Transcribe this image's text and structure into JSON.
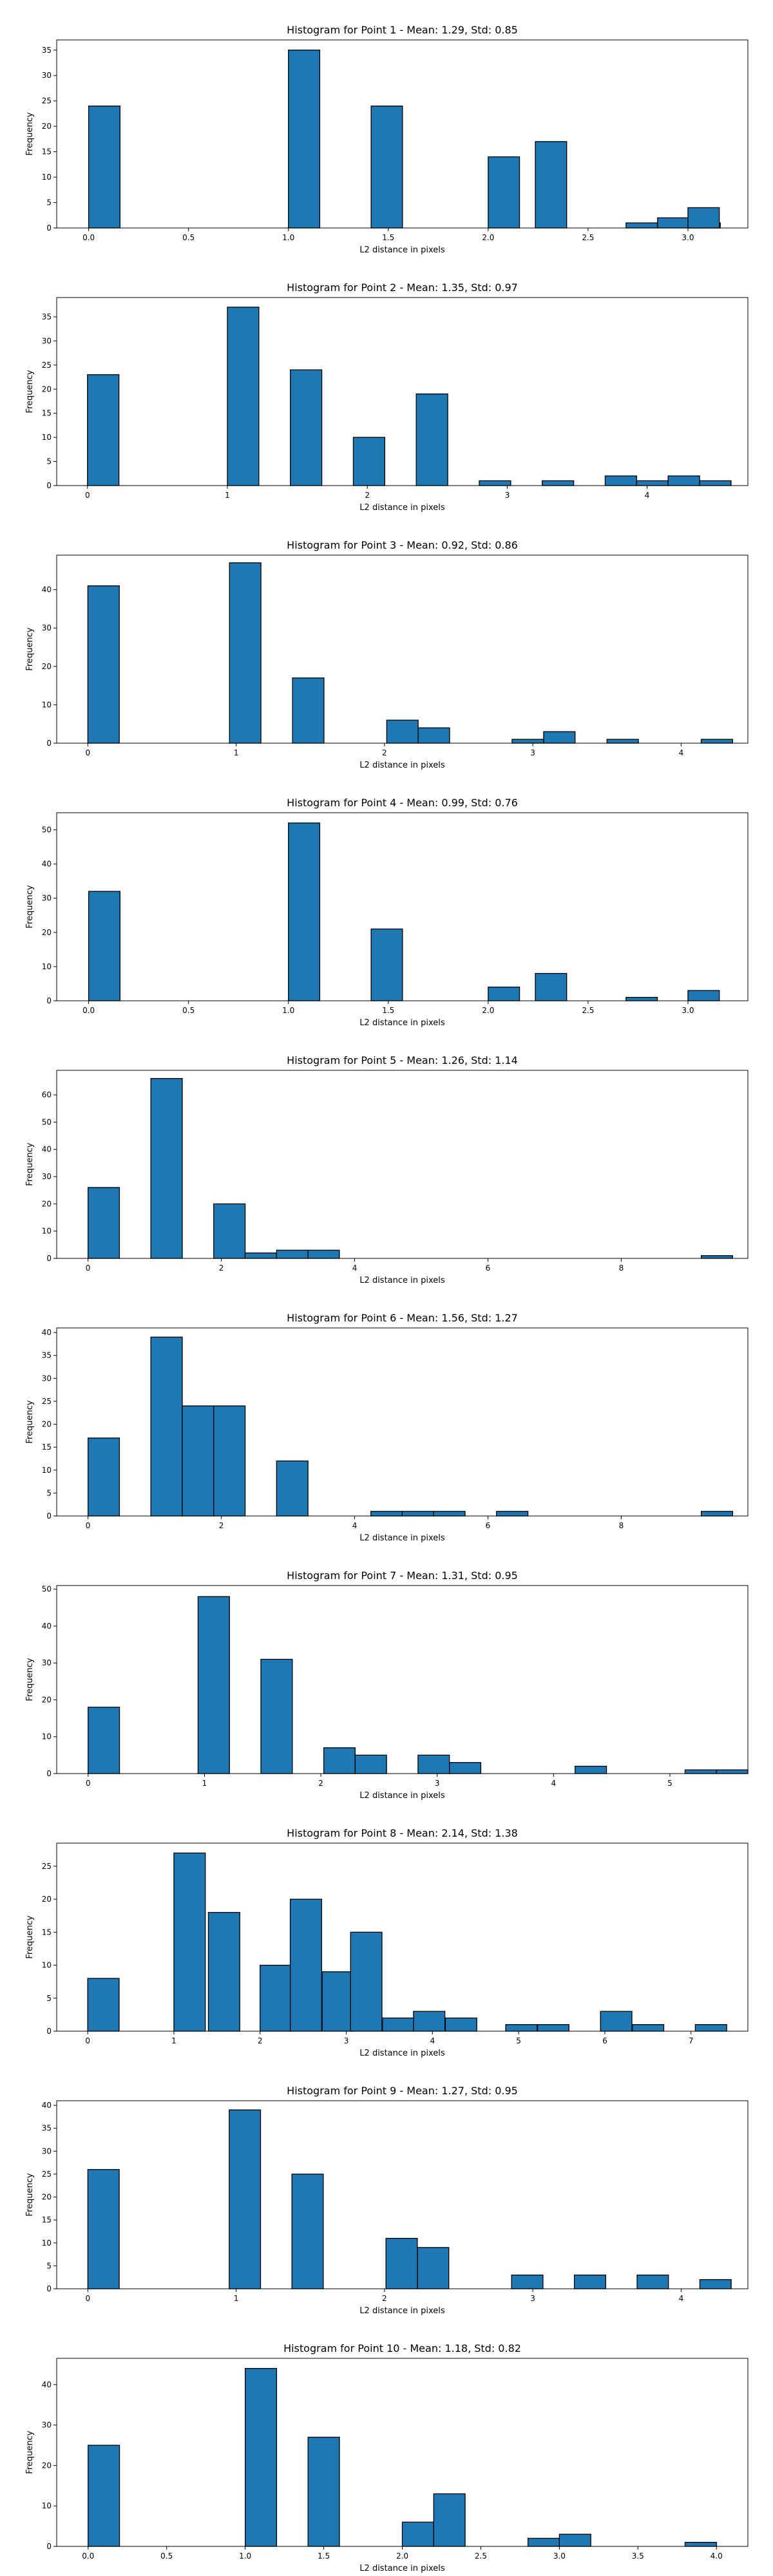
{
  "chart_data": [
    {
      "type": "bar",
      "title": "Histogram for Point 1 - Mean: 1.29, Std: 0.85",
      "xlabel": "L2 distance in pixels",
      "ylabel": "Frequency",
      "grid": false,
      "bin_width": 0.157,
      "xlim": [
        -0.16,
        3.3
      ],
      "ylim": [
        0,
        37
      ],
      "xticks": [
        0,
        0.5,
        1,
        1.5,
        2,
        2.5,
        3
      ],
      "xtick_labels": [
        "0.0",
        "0.5",
        "1.0",
        "1.5",
        "2.0",
        "2.5",
        "3.0"
      ],
      "yticks": [
        0,
        5,
        10,
        15,
        20,
        25,
        30,
        35
      ],
      "bars": [
        {
          "x": 0.0,
          "value": 24
        },
        {
          "x": 1.0,
          "value": 35
        },
        {
          "x": 1.414,
          "value": 24
        },
        {
          "x": 2.0,
          "value": 14
        },
        {
          "x": 2.236,
          "value": 17
        },
        {
          "x": 2.69,
          "value": 1
        },
        {
          "x": 2.848,
          "value": 2
        },
        {
          "x": 3.005,
          "value": 1
        },
        {
          "x": 3.0,
          "value": 4
        }
      ]
    },
    {
      "type": "bar",
      "title": "Histogram for Point 2 - Mean: 1.35, Std: 0.97",
      "xlabel": "L2 distance in pixels",
      "ylabel": "Frequency",
      "grid": false,
      "bin_width": 0.225,
      "xlim": [
        -0.22,
        4.72
      ],
      "ylim": [
        0,
        39
      ],
      "xticks": [
        0,
        1,
        2,
        3,
        4
      ],
      "xtick_labels": [
        "0",
        "1",
        "2",
        "3",
        "4"
      ],
      "yticks": [
        0,
        5,
        10,
        15,
        20,
        25,
        30,
        35
      ],
      "bars": [
        {
          "x": 0.0,
          "value": 23
        },
        {
          "x": 1.0,
          "value": 37
        },
        {
          "x": 1.45,
          "value": 24
        },
        {
          "x": 1.9,
          "value": 10
        },
        {
          "x": 2.35,
          "value": 19
        },
        {
          "x": 2.8,
          "value": 1
        },
        {
          "x": 3.25,
          "value": 1
        },
        {
          "x": 3.7,
          "value": 2
        },
        {
          "x": 3.925,
          "value": 1
        },
        {
          "x": 4.15,
          "value": 2
        },
        {
          "x": 4.375,
          "value": 1
        }
      ]
    },
    {
      "type": "bar",
      "title": "Histogram for Point 3 - Mean: 0.92, Std: 0.86",
      "xlabel": "L2 distance in pixels",
      "ylabel": "Frequency",
      "grid": false,
      "bin_width": 0.212,
      "xlim": [
        -0.21,
        4.45
      ],
      "ylim": [
        0,
        49
      ],
      "xticks": [
        0,
        1,
        2,
        3,
        4
      ],
      "xtick_labels": [
        "0",
        "1",
        "2",
        "3",
        "4"
      ],
      "yticks": [
        0,
        10,
        20,
        30,
        40
      ],
      "bars": [
        {
          "x": 0.0,
          "value": 41
        },
        {
          "x": 0.955,
          "value": 47
        },
        {
          "x": 1.38,
          "value": 17
        },
        {
          "x": 2.015,
          "value": 6
        },
        {
          "x": 2.227,
          "value": 4
        },
        {
          "x": 2.86,
          "value": 1
        },
        {
          "x": 3.073,
          "value": 3
        },
        {
          "x": 3.5,
          "value": 1
        },
        {
          "x": 4.135,
          "value": 1
        }
      ]
    },
    {
      "type": "bar",
      "title": "Histogram for Point 4 - Mean: 0.99, Std: 0.76",
      "xlabel": "L2 distance in pixels",
      "ylabel": "Frequency",
      "grid": false,
      "bin_width": 0.157,
      "xlim": [
        -0.16,
        3.3
      ],
      "ylim": [
        0,
        55
      ],
      "xticks": [
        0,
        0.5,
        1,
        1.5,
        2,
        2.5,
        3
      ],
      "xtick_labels": [
        "0.0",
        "0.5",
        "1.0",
        "1.5",
        "2.0",
        "2.5",
        "3.0"
      ],
      "yticks": [
        0,
        10,
        20,
        30,
        40,
        50
      ],
      "bars": [
        {
          "x": 0.0,
          "value": 32
        },
        {
          "x": 1.0,
          "value": 52
        },
        {
          "x": 1.414,
          "value": 21
        },
        {
          "x": 2.0,
          "value": 4
        },
        {
          "x": 2.236,
          "value": 8
        },
        {
          "x": 2.69,
          "value": 1
        },
        {
          "x": 3.0,
          "value": 3
        }
      ]
    },
    {
      "type": "bar",
      "title": "Histogram for Point 5 - Mean: 1.26, Std: 1.14",
      "xlabel": "L2 distance in pixels",
      "ylabel": "Frequency",
      "grid": false,
      "bin_width": 0.4715,
      "xlim": [
        -0.47,
        9.9
      ],
      "ylim": [
        0,
        69
      ],
      "xticks": [
        0,
        2,
        4,
        6,
        8
      ],
      "xtick_labels": [
        "0",
        "2",
        "4",
        "6",
        "8"
      ],
      "yticks": [
        0,
        10,
        20,
        30,
        40,
        50,
        60
      ],
      "bars": [
        {
          "x": 0.0,
          "value": 26
        },
        {
          "x": 0.943,
          "value": 66
        },
        {
          "x": 1.886,
          "value": 20
        },
        {
          "x": 2.357,
          "value": 2
        },
        {
          "x": 2.829,
          "value": 3
        },
        {
          "x": 3.3,
          "value": 3
        },
        {
          "x": 9.2,
          "value": 1
        }
      ]
    },
    {
      "type": "bar",
      "title": "Histogram for Point 6 - Mean: 1.56, Std: 1.27",
      "xlabel": "L2 distance in pixels",
      "ylabel": "Frequency",
      "grid": false,
      "bin_width": 0.4715,
      "xlim": [
        -0.47,
        9.9
      ],
      "ylim": [
        0,
        41
      ],
      "xticks": [
        0,
        2,
        4,
        6,
        8
      ],
      "xtick_labels": [
        "0",
        "2",
        "4",
        "6",
        "8"
      ],
      "yticks": [
        0,
        5,
        10,
        15,
        20,
        25,
        30,
        35,
        40
      ],
      "bars": [
        {
          "x": 0.0,
          "value": 17
        },
        {
          "x": 0.943,
          "value": 39
        },
        {
          "x": 1.414,
          "value": 24
        },
        {
          "x": 1.886,
          "value": 24
        },
        {
          "x": 2.829,
          "value": 12
        },
        {
          "x": 4.243,
          "value": 1
        },
        {
          "x": 4.714,
          "value": 1
        },
        {
          "x": 5.186,
          "value": 1
        },
        {
          "x": 6.129,
          "value": 1
        },
        {
          "x": 9.2,
          "value": 1
        }
      ]
    },
    {
      "type": "bar",
      "title": "Histogram for Point 7 - Mean: 1.31, Std: 0.95",
      "xlabel": "L2 distance in pixels",
      "ylabel": "Frequency",
      "grid": false,
      "bin_width": 0.27,
      "xlim": [
        -0.27,
        5.67
      ],
      "ylim": [
        0,
        51
      ],
      "xticks": [
        0,
        1,
        2,
        3,
        4,
        5
      ],
      "xtick_labels": [
        "0",
        "1",
        "2",
        "3",
        "4",
        "5"
      ],
      "yticks": [
        0,
        10,
        20,
        30,
        40,
        50
      ],
      "bars": [
        {
          "x": 0.0,
          "value": 18
        },
        {
          "x": 0.945,
          "value": 48
        },
        {
          "x": 1.485,
          "value": 31
        },
        {
          "x": 2.025,
          "value": 7
        },
        {
          "x": 2.295,
          "value": 5
        },
        {
          "x": 2.835,
          "value": 5
        },
        {
          "x": 3.105,
          "value": 3
        },
        {
          "x": 4.185,
          "value": 2
        },
        {
          "x": 5.13,
          "value": 1
        },
        {
          "x": 5.4,
          "value": 1
        }
      ]
    },
    {
      "type": "bar",
      "title": "Histogram for Point 8 - Mean: 2.14, Std: 1.38",
      "xlabel": "L2 distance in pixels",
      "ylabel": "Frequency",
      "grid": false,
      "bin_width": 0.3645,
      "xlim": [
        -0.36,
        7.66
      ],
      "ylim": [
        0,
        28.5
      ],
      "xticks": [
        0,
        1,
        2,
        3,
        4,
        5,
        6,
        7
      ],
      "xtick_labels": [
        "0",
        "1",
        "2",
        "3",
        "4",
        "5",
        "6",
        "7"
      ],
      "yticks": [
        0,
        5,
        10,
        15,
        20,
        25
      ],
      "bars": [
        {
          "x": 0.0,
          "value": 8
        },
        {
          "x": 1.0,
          "value": 27
        },
        {
          "x": 1.4,
          "value": 18
        },
        {
          "x": 2.0,
          "value": 10
        },
        {
          "x": 2.35,
          "value": 20
        },
        {
          "x": 2.72,
          "value": 9
        },
        {
          "x": 3.05,
          "value": 15
        },
        {
          "x": 3.42,
          "value": 2
        },
        {
          "x": 3.78,
          "value": 3
        },
        {
          "x": 4.15,
          "value": 2
        },
        {
          "x": 4.85,
          "value": 1
        },
        {
          "x": 5.22,
          "value": 1
        },
        {
          "x": 5.95,
          "value": 3
        },
        {
          "x": 6.32,
          "value": 1
        },
        {
          "x": 7.05,
          "value": 1
        }
      ]
    },
    {
      "type": "bar",
      "title": "Histogram for Point 9 - Mean: 1.27, Std: 0.95",
      "xlabel": "L2 distance in pixels",
      "ylabel": "Frequency",
      "grid": false,
      "bin_width": 0.2115,
      "xlim": [
        -0.21,
        4.45
      ],
      "ylim": [
        0,
        41
      ],
      "xticks": [
        0,
        1,
        2,
        3,
        4
      ],
      "xtick_labels": [
        "0",
        "1",
        "2",
        "3",
        "4"
      ],
      "yticks": [
        0,
        5,
        10,
        15,
        20,
        25,
        30,
        35,
        40
      ],
      "bars": [
        {
          "x": 0.0,
          "value": 26
        },
        {
          "x": 0.953,
          "value": 39
        },
        {
          "x": 1.376,
          "value": 25
        },
        {
          "x": 2.01,
          "value": 11
        },
        {
          "x": 2.222,
          "value": 9
        },
        {
          "x": 2.857,
          "value": 3
        },
        {
          "x": 3.28,
          "value": 3
        },
        {
          "x": 3.703,
          "value": 3
        },
        {
          "x": 4.126,
          "value": 2
        }
      ]
    },
    {
      "type": "bar",
      "title": "Histogram for Point 10 - Mean: 1.18, Std: 0.82",
      "xlabel": "L2 distance in pixels",
      "ylabel": "Frequency",
      "grid": false,
      "bin_width": 0.2,
      "xlim": [
        -0.2,
        4.2
      ],
      "ylim": [
        0,
        46.5
      ],
      "xticks": [
        0,
        0.5,
        1,
        1.5,
        2,
        2.5,
        3,
        3.5,
        4
      ],
      "xtick_labels": [
        "0.0",
        "0.5",
        "1.0",
        "1.5",
        "2.0",
        "2.5",
        "3.0",
        "3.5",
        "4.0"
      ],
      "yticks": [
        0,
        10,
        20,
        30,
        40
      ],
      "bars": [
        {
          "x": 0.0,
          "value": 25
        },
        {
          "x": 1.0,
          "value": 44
        },
        {
          "x": 1.4,
          "value": 27
        },
        {
          "x": 2.0,
          "value": 6
        },
        {
          "x": 2.2,
          "value": 13
        },
        {
          "x": 2.8,
          "value": 2
        },
        {
          "x": 3.0,
          "value": 3
        },
        {
          "x": 3.8,
          "value": 1
        }
      ]
    }
  ]
}
